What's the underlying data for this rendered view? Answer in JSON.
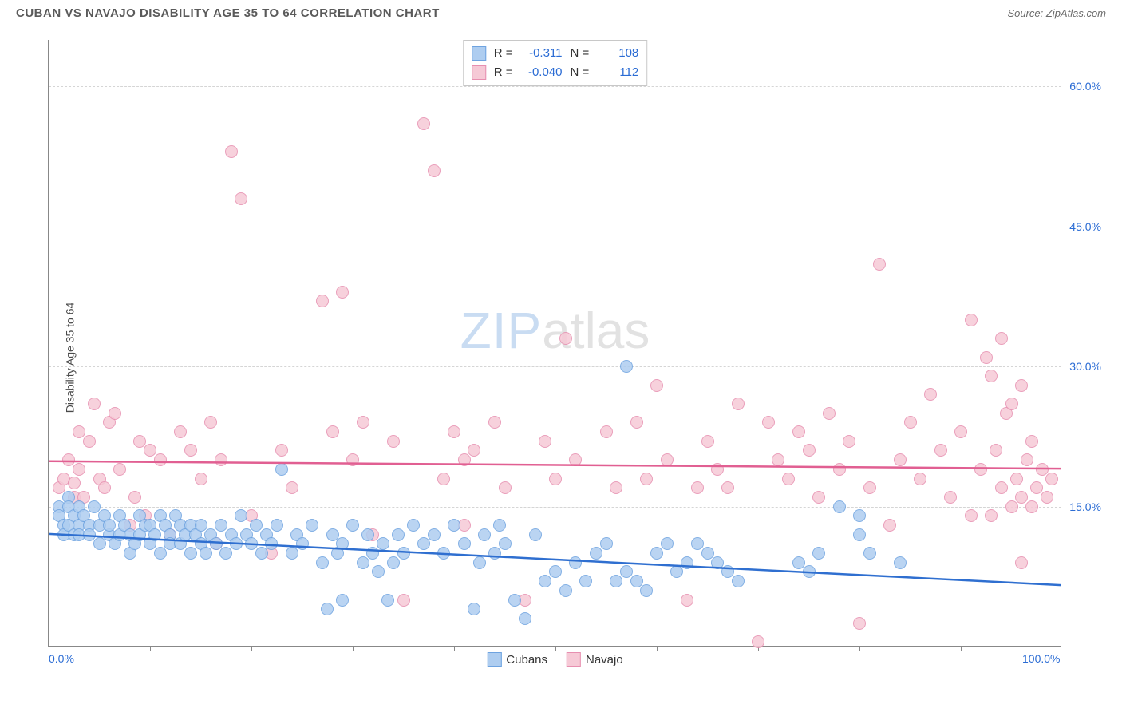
{
  "title": "CUBAN VS NAVAJO DISABILITY AGE 35 TO 64 CORRELATION CHART",
  "source": "Source: ZipAtlas.com",
  "ylabel": "Disability Age 35 to 64",
  "watermark": {
    "part1": "ZIP",
    "part2": "atlas"
  },
  "xlim": [
    0,
    100
  ],
  "ylim": [
    0,
    65
  ],
  "xticks": [
    0,
    100
  ],
  "xtick_labels": [
    "0.0%",
    "100.0%"
  ],
  "xminor": [
    10,
    20,
    30,
    40,
    50,
    60,
    70,
    80,
    90
  ],
  "yticks": [
    15,
    30,
    45,
    60
  ],
  "ytick_labels": [
    "15.0%",
    "30.0%",
    "45.0%",
    "60.0%"
  ],
  "background_color": "#ffffff",
  "grid_color": "#d5d5d5",
  "series": {
    "cubans": {
      "label": "Cubans",
      "fill": "#aecdf0",
      "stroke": "#6ea3e0",
      "line_stroke": "#2f6fd0",
      "R": "-0.311",
      "N": "108",
      "trend": {
        "x1": 0,
        "y1": 12.0,
        "x2": 100,
        "y2": 6.5
      },
      "marker_radius": 8,
      "points": [
        [
          1,
          15
        ],
        [
          1,
          14
        ],
        [
          1.5,
          13
        ],
        [
          1.5,
          12
        ],
        [
          2,
          16
        ],
        [
          2,
          15
        ],
        [
          2,
          13
        ],
        [
          2.5,
          14
        ],
        [
          2.5,
          12
        ],
        [
          3,
          15
        ],
        [
          3,
          13
        ],
        [
          3,
          12
        ],
        [
          3.5,
          14
        ],
        [
          4,
          13
        ],
        [
          4,
          12
        ],
        [
          4.5,
          15
        ],
        [
          5,
          13
        ],
        [
          5,
          11
        ],
        [
          5.5,
          14
        ],
        [
          6,
          12
        ],
        [
          6,
          13
        ],
        [
          6.5,
          11
        ],
        [
          7,
          14
        ],
        [
          7,
          12
        ],
        [
          7.5,
          13
        ],
        [
          8,
          10
        ],
        [
          8,
          12
        ],
        [
          8.5,
          11
        ],
        [
          9,
          12
        ],
        [
          9,
          14
        ],
        [
          9.5,
          13
        ],
        [
          10,
          11
        ],
        [
          10,
          13
        ],
        [
          10.5,
          12
        ],
        [
          11,
          10
        ],
        [
          11,
          14
        ],
        [
          11.5,
          13
        ],
        [
          12,
          12
        ],
        [
          12,
          11
        ],
        [
          12.5,
          14
        ],
        [
          13,
          13
        ],
        [
          13,
          11
        ],
        [
          13.5,
          12
        ],
        [
          14,
          10
        ],
        [
          14,
          13
        ],
        [
          14.5,
          12
        ],
        [
          15,
          11
        ],
        [
          15,
          13
        ],
        [
          15.5,
          10
        ],
        [
          16,
          12
        ],
        [
          16.5,
          11
        ],
        [
          17,
          13
        ],
        [
          17.5,
          10
        ],
        [
          18,
          12
        ],
        [
          18.5,
          11
        ],
        [
          19,
          14
        ],
        [
          19.5,
          12
        ],
        [
          20,
          11
        ],
        [
          20.5,
          13
        ],
        [
          21,
          10
        ],
        [
          21.5,
          12
        ],
        [
          22,
          11
        ],
        [
          22.5,
          13
        ],
        [
          23,
          19
        ],
        [
          24,
          10
        ],
        [
          24.5,
          12
        ],
        [
          25,
          11
        ],
        [
          26,
          13
        ],
        [
          27,
          9
        ],
        [
          27.5,
          4
        ],
        [
          28,
          12
        ],
        [
          28.5,
          10
        ],
        [
          29,
          11
        ],
        [
          29,
          5
        ],
        [
          30,
          13
        ],
        [
          31,
          9
        ],
        [
          31.5,
          12
        ],
        [
          32,
          10
        ],
        [
          32.5,
          8
        ],
        [
          33,
          11
        ],
        [
          33.5,
          5
        ],
        [
          34,
          9
        ],
        [
          34.5,
          12
        ],
        [
          35,
          10
        ],
        [
          36,
          13
        ],
        [
          37,
          11
        ],
        [
          38,
          12
        ],
        [
          39,
          10
        ],
        [
          40,
          13
        ],
        [
          41,
          11
        ],
        [
          42,
          4
        ],
        [
          42.5,
          9
        ],
        [
          43,
          12
        ],
        [
          44,
          10
        ],
        [
          44.5,
          13
        ],
        [
          45,
          11
        ],
        [
          46,
          5
        ],
        [
          47,
          3
        ],
        [
          48,
          12
        ],
        [
          49,
          7
        ],
        [
          50,
          8
        ],
        [
          51,
          6
        ],
        [
          52,
          9
        ],
        [
          53,
          7
        ],
        [
          54,
          10
        ],
        [
          55,
          11
        ],
        [
          56,
          7
        ],
        [
          57,
          8
        ],
        [
          57,
          30
        ],
        [
          58,
          7
        ],
        [
          59,
          6
        ],
        [
          60,
          10
        ],
        [
          61,
          11
        ],
        [
          62,
          8
        ],
        [
          63,
          9
        ],
        [
          64,
          11
        ],
        [
          65,
          10
        ],
        [
          66,
          9
        ],
        [
          67,
          8
        ],
        [
          68,
          7
        ],
        [
          74,
          9
        ],
        [
          75,
          8
        ],
        [
          76,
          10
        ],
        [
          78,
          15
        ],
        [
          80,
          12
        ],
        [
          80,
          14
        ],
        [
          81,
          10
        ],
        [
          84,
          9
        ]
      ]
    },
    "navajo": {
      "label": "Navajo",
      "fill": "#f6c9d6",
      "stroke": "#e78fb0",
      "line_stroke": "#e15f92",
      "R": "-0.040",
      "N": "112",
      "trend": {
        "x1": 0,
        "y1": 19.8,
        "x2": 100,
        "y2": 19.0
      },
      "marker_radius": 8,
      "points": [
        [
          1,
          17
        ],
        [
          1.5,
          18
        ],
        [
          2,
          20
        ],
        [
          2.5,
          16
        ],
        [
          2.5,
          17.5
        ],
        [
          3,
          23
        ],
        [
          3,
          19
        ],
        [
          3.5,
          16
        ],
        [
          4,
          22
        ],
        [
          4.5,
          26
        ],
        [
          5,
          18
        ],
        [
          5.5,
          17
        ],
        [
          6,
          24
        ],
        [
          6.5,
          25
        ],
        [
          7,
          19
        ],
        [
          8,
          13
        ],
        [
          8.5,
          16
        ],
        [
          9,
          22
        ],
        [
          9.5,
          14
        ],
        [
          10,
          21
        ],
        [
          11,
          20
        ],
        [
          12,
          12
        ],
        [
          13,
          23
        ],
        [
          14,
          21
        ],
        [
          15,
          18
        ],
        [
          16,
          24
        ],
        [
          16.5,
          11
        ],
        [
          17,
          20
        ],
        [
          18,
          53
        ],
        [
          19,
          48
        ],
        [
          20,
          14
        ],
        [
          22,
          10
        ],
        [
          23,
          21
        ],
        [
          24,
          17
        ],
        [
          27,
          37
        ],
        [
          28,
          23
        ],
        [
          29,
          38
        ],
        [
          30,
          20
        ],
        [
          31,
          24
        ],
        [
          32,
          12
        ],
        [
          34,
          22
        ],
        [
          35,
          5
        ],
        [
          37,
          56
        ],
        [
          38,
          51
        ],
        [
          39,
          18
        ],
        [
          40,
          23
        ],
        [
          41,
          20
        ],
        [
          41,
          13
        ],
        [
          42,
          21
        ],
        [
          44,
          24
        ],
        [
          45,
          17
        ],
        [
          47,
          5
        ],
        [
          49,
          22
        ],
        [
          50,
          18
        ],
        [
          51,
          33
        ],
        [
          52,
          20
        ],
        [
          55,
          23
        ],
        [
          56,
          17
        ],
        [
          58,
          24
        ],
        [
          59,
          18
        ],
        [
          60,
          28
        ],
        [
          61,
          20
        ],
        [
          63,
          5
        ],
        [
          64,
          17
        ],
        [
          65,
          22
        ],
        [
          66,
          19
        ],
        [
          67,
          17
        ],
        [
          68,
          26
        ],
        [
          70,
          0.5
        ],
        [
          71,
          24
        ],
        [
          72,
          20
        ],
        [
          73,
          18
        ],
        [
          74,
          23
        ],
        [
          75,
          21
        ],
        [
          76,
          16
        ],
        [
          77,
          25
        ],
        [
          78,
          19
        ],
        [
          79,
          22
        ],
        [
          80,
          2.5
        ],
        [
          81,
          17
        ],
        [
          82,
          41
        ],
        [
          83,
          13
        ],
        [
          84,
          20
        ],
        [
          85,
          24
        ],
        [
          86,
          18
        ],
        [
          87,
          27
        ],
        [
          88,
          21
        ],
        [
          89,
          16
        ],
        [
          90,
          23
        ],
        [
          91,
          35
        ],
        [
          91,
          14
        ],
        [
          92,
          19
        ],
        [
          92.5,
          31
        ],
        [
          93,
          29
        ],
        [
          93,
          14
        ],
        [
          93.5,
          21
        ],
        [
          94,
          33
        ],
        [
          94,
          17
        ],
        [
          94.5,
          25
        ],
        [
          95,
          26
        ],
        [
          95,
          15
        ],
        [
          95.5,
          18
        ],
        [
          96,
          28
        ],
        [
          96,
          9
        ],
        [
          96,
          16
        ],
        [
          96.5,
          20
        ],
        [
          97,
          22
        ],
        [
          97,
          15
        ],
        [
          97.5,
          17
        ],
        [
          98,
          19
        ],
        [
          98.5,
          16
        ],
        [
          99,
          18
        ]
      ]
    }
  },
  "legend_bottom": [
    {
      "key": "cubans",
      "label": "Cubans"
    },
    {
      "key": "navajo",
      "label": "Navajo"
    }
  ]
}
